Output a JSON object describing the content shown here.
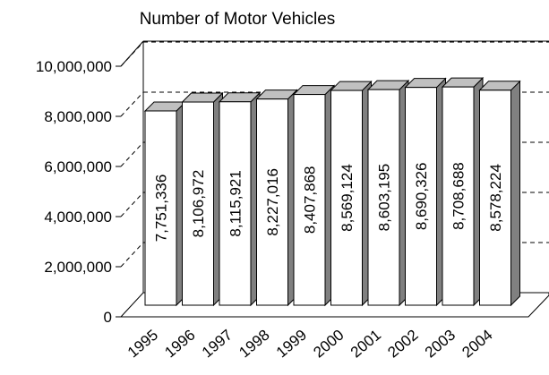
{
  "chart_data": {
    "type": "bar3d",
    "title": "Number of Motor Vehicles",
    "categories": [
      "1995",
      "1996",
      "1997",
      "1998",
      "1999",
      "2000",
      "2001",
      "2002",
      "2003",
      "2004"
    ],
    "values": [
      7751336,
      8106972,
      8115921,
      8227016,
      8407868,
      8569124,
      8603195,
      8690326,
      8708688,
      8578224
    ],
    "value_labels": [
      "7,751,336",
      "8,106,972",
      "8,115,921",
      "8,227,016",
      "8,407,868",
      "8,569,124",
      "8,603,195",
      "8,690,326",
      "8,708,688",
      "8,578,224"
    ],
    "color": "#ffffff",
    "ylim": [
      0,
      10000000
    ],
    "yticks": [
      0,
      {
        "value": 2000000,
        "label": "2,000,000"
      },
      {
        "value": 4000000,
        "label": "4,000,000"
      },
      {
        "value": 6000000,
        "label": "6,000,000"
      },
      {
        "value": 8000000,
        "label": "8,000,000"
      },
      {
        "value": 10000000,
        "label": "10,000,000"
      }
    ],
    "grid": true
  }
}
